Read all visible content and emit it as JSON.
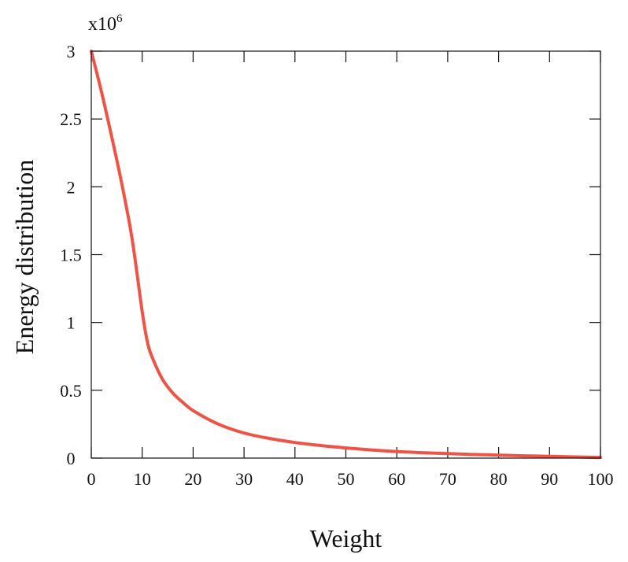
{
  "chart_data": {
    "type": "line",
    "title": "",
    "xlabel": "Weight",
    "ylabel": "Energy distribution",
    "y_multiplier_base": "x10",
    "y_multiplier_exponent": "6",
    "xlim": [
      0,
      100
    ],
    "ylim": [
      0,
      3
    ],
    "x_ticks": [
      0,
      10,
      20,
      30,
      40,
      50,
      60,
      70,
      80,
      90,
      100
    ],
    "x_tick_labels": [
      "0",
      "10",
      "20",
      "30",
      "40",
      "50",
      "60",
      "70",
      "80",
      "90",
      "100"
    ],
    "y_ticks": [
      0,
      0.5,
      1,
      1.5,
      2,
      2.5,
      3
    ],
    "y_tick_labels": [
      "0",
      "0.5",
      "1",
      "1.5",
      "2",
      "2.5",
      "3"
    ],
    "grid": false,
    "legend": "none",
    "series": [
      {
        "color": "#ee5346",
        "x": [
          0,
          2,
          4,
          6,
          8,
          10,
          11,
          12,
          14,
          16,
          18,
          20,
          25,
          30,
          35,
          40,
          45,
          50,
          55,
          60,
          65,
          70,
          75,
          80,
          85,
          90,
          95,
          100
        ],
        "y": [
          3.0,
          2.7,
          2.37,
          2.02,
          1.62,
          1.08,
          0.86,
          0.74,
          0.58,
          0.48,
          0.41,
          0.35,
          0.25,
          0.185,
          0.145,
          0.115,
          0.093,
          0.075,
          0.06,
          0.048,
          0.04,
          0.033,
          0.027,
          0.022,
          0.017,
          0.013,
          0.009,
          0.005
        ]
      }
    ]
  }
}
